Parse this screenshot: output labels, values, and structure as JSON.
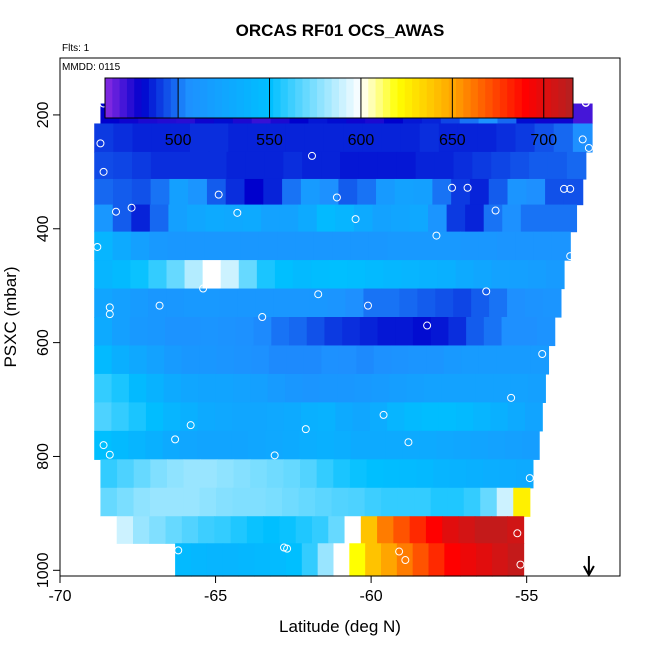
{
  "header": {
    "title": "ORCAS RF01 OCS_AWAS",
    "flts": "Flts: 1",
    "mmdd": "MMDD: 0115"
  },
  "chart_data": {
    "type": "heatmap",
    "title": "ORCAS RF01 OCS_AWAS",
    "xlabel": "Latitude (deg N)",
    "ylabel": "PSXC (mbar)",
    "xlim": [
      -70,
      -52
    ],
    "ylim": [
      1010,
      100
    ],
    "y_reversed": true,
    "grid": false,
    "x_ticks": [
      -70,
      -65,
      -60,
      -55
    ],
    "y_ticks": [
      200,
      400,
      600,
      800,
      1000
    ],
    "colorbar": {
      "range": [
        460,
        716
      ],
      "ticks": [
        500,
        550,
        600,
        650,
        700
      ],
      "colors": [
        "#8a2be2",
        "#0000cd",
        "#1e90ff",
        "#00bfff",
        "#ffffff",
        "#ffff00",
        "#ffa500",
        "#ff0000",
        "#b22222"
      ],
      "stops": [
        460,
        480,
        505,
        550,
        600,
        620,
        650,
        690,
        716
      ]
    },
    "layers": [
      {
        "p": 190,
        "lat_start": -68.7,
        "lat_end": -52.9,
        "values": [
          480,
          478,
          476,
          475,
          474,
          478,
          482,
          476,
          472,
          476,
          480,
          484,
          482,
          478,
          476,
          480,
          484,
          486,
          492,
          500,
          508,
          498,
          482,
          478,
          478,
          470
        ]
      },
      {
        "p": 240,
        "lat_start": -68.9,
        "lat_end": -52.9,
        "values": [
          490,
          488,
          486,
          486,
          486,
          488,
          488,
          486,
          486,
          486,
          486,
          486,
          486,
          486,
          486,
          486,
          486,
          488,
          486,
          486,
          486,
          488,
          490,
          494,
          498,
          505
        ]
      },
      {
        "p": 290,
        "lat_start": -68.9,
        "lat_end": -53.1,
        "values": [
          493,
          492,
          490,
          488,
          488,
          488,
          488,
          486,
          486,
          486,
          488,
          486,
          486,
          484,
          484,
          484,
          484,
          486,
          486,
          488,
          490,
          492,
          494,
          496,
          496,
          498
        ]
      },
      {
        "p": 335,
        "lat_start": -68.9,
        "lat_end": -53.2,
        "values": [
          498,
          496,
          494,
          500,
          520,
          510,
          496,
          488,
          480,
          486,
          500,
          516,
          506,
          496,
          500,
          515,
          522,
          520,
          500,
          490,
          486,
          496,
          510,
          505,
          494,
          494
        ]
      },
      {
        "p": 380,
        "lat_start": -68.9,
        "lat_end": -53.4,
        "values": [
          512,
          496,
          486,
          498,
          520,
          526,
          530,
          528,
          530,
          522,
          522,
          530,
          545,
          540,
          530,
          522,
          525,
          528,
          510,
          490,
          486,
          500,
          506,
          500,
          500,
          500
        ]
      },
      {
        "p": 430,
        "lat_start": -68.9,
        "lat_end": -53.6,
        "values": [
          540,
          530,
          520,
          514,
          512,
          512,
          512,
          512,
          512,
          512,
          512,
          512,
          512,
          512,
          512,
          512,
          514,
          514,
          514,
          514,
          512,
          512,
          510,
          510,
          510,
          510
        ]
      },
      {
        "p": 480,
        "lat_start": -68.9,
        "lat_end": -53.8,
        "values": [
          540,
          545,
          552,
          560,
          570,
          585,
          600,
          590,
          570,
          555,
          550,
          545,
          548,
          550,
          548,
          545,
          542,
          540,
          538,
          536,
          530,
          526,
          522,
          520,
          518,
          516
        ]
      },
      {
        "p": 530,
        "lat_start": -68.9,
        "lat_end": -53.9,
        "values": [
          525,
          520,
          516,
          512,
          512,
          514,
          514,
          512,
          512,
          512,
          512,
          512,
          512,
          510,
          505,
          500,
          500,
          498,
          496,
          494,
          492,
          496,
          500,
          505,
          508,
          510
        ]
      },
      {
        "p": 580,
        "lat_start": -68.9,
        "lat_end": -54.1,
        "values": [
          530,
          520,
          514,
          512,
          508,
          508,
          510,
          508,
          506,
          504,
          500,
          498,
          494,
          490,
          488,
          486,
          484,
          484,
          482,
          484,
          488,
          496,
          500,
          505,
          505,
          508
        ]
      },
      {
        "p": 630,
        "lat_start": -68.9,
        "lat_end": -54.3,
        "values": [
          545,
          535,
          528,
          522,
          516,
          512,
          512,
          510,
          508,
          506,
          504,
          504,
          504,
          506,
          505,
          504,
          506,
          508,
          510,
          510,
          514,
          516,
          516,
          516,
          516,
          516
        ]
      },
      {
        "p": 680,
        "lat_start": -68.9,
        "lat_end": -54.4,
        "values": [
          560,
          555,
          545,
          538,
          530,
          526,
          524,
          524,
          522,
          520,
          516,
          512,
          510,
          512,
          512,
          514,
          516,
          518,
          520,
          522,
          522,
          522,
          522,
          522,
          522,
          520
        ]
      },
      {
        "p": 730,
        "lat_start": -68.9,
        "lat_end": -54.5,
        "values": [
          565,
          560,
          555,
          548,
          540,
          536,
          530,
          528,
          526,
          526,
          528,
          530,
          536,
          538,
          530,
          526,
          532,
          540,
          545,
          548,
          548,
          545,
          540,
          536,
          530,
          524
        ]
      },
      {
        "p": 780,
        "lat_start": -68.9,
        "lat_end": -54.6,
        "values": [
          550,
          545,
          540,
          536,
          530,
          526,
          524,
          524,
          524,
          526,
          528,
          530,
          534,
          536,
          534,
          530,
          530,
          530,
          530,
          530,
          528,
          526,
          524,
          522,
          520,
          518
        ]
      },
      {
        "p": 830,
        "lat_start": -68.7,
        "lat_end": -54.8,
        "values": [
          560,
          565,
          570,
          575,
          578,
          580,
          580,
          578,
          576,
          574,
          572,
          570,
          566,
          560,
          555,
          552,
          550,
          548,
          546,
          544,
          540,
          538,
          536,
          534,
          532,
          530
        ]
      },
      {
        "p": 880,
        "lat_start": -68.7,
        "lat_end": -54.9,
        "values": [
          570,
          574,
          578,
          580,
          580,
          580,
          578,
          576,
          575,
          575,
          574,
          572,
          570,
          568,
          566,
          565,
          562,
          560,
          560,
          560,
          556,
          556,
          560,
          570,
          590,
          625
        ]
      },
      {
        "p": 930,
        "lat_start": -68.7,
        "lat_end": -55.1,
        "values": [
          600,
          590,
          580,
          575,
          570,
          566,
          562,
          560,
          556,
          552,
          550,
          552,
          556,
          560,
          570,
          600,
          640,
          660,
          670,
          680,
          690,
          700,
          705,
          710,
          710,
          706
        ]
      },
      {
        "p": 975,
        "lat_start": -66.3,
        "lat_end": -55.1,
        "values": [
          545,
          542,
          540,
          540,
          542,
          544,
          546,
          550,
          560,
          580,
          600,
          620,
          640,
          650,
          660,
          670,
          680,
          690,
          696,
          700,
          705,
          710
        ]
      }
    ],
    "sample_points": [
      [
        -68.6,
        180
      ],
      [
        -66.1,
        178
      ],
      [
        -60.4,
        178
      ],
      [
        -56.4,
        178
      ],
      [
        -53.1,
        178
      ],
      [
        -53.1,
        179
      ],
      [
        -68.7,
        250
      ],
      [
        -61.9,
        272
      ],
      [
        -53.2,
        243
      ],
      [
        -53.0,
        258
      ],
      [
        -68.6,
        300
      ],
      [
        -64.9,
        340
      ],
      [
        -61.1,
        345
      ],
      [
        -57.4,
        328
      ],
      [
        -56.9,
        328
      ],
      [
        -56.0,
        368
      ],
      [
        -53.8,
        330
      ],
      [
        -53.6,
        330
      ],
      [
        -68.2,
        370
      ],
      [
        -67.7,
        363
      ],
      [
        -64.3,
        372
      ],
      [
        -60.5,
        383
      ],
      [
        -57.9,
        412
      ],
      [
        -53.6,
        448
      ],
      [
        -68.8,
        432
      ],
      [
        -65.4,
        505
      ],
      [
        -61.7,
        515
      ],
      [
        -56.3,
        510
      ],
      [
        -60.1,
        535
      ],
      [
        -66.8,
        535
      ],
      [
        -68.4,
        538
      ],
      [
        -68.4,
        550
      ],
      [
        -63.5,
        555
      ],
      [
        -58.2,
        570
      ],
      [
        -54.5,
        620
      ],
      [
        -59.6,
        727
      ],
      [
        -55.5,
        697
      ],
      [
        -65.8,
        745
      ],
      [
        -62.1,
        752
      ],
      [
        -68.6,
        780
      ],
      [
        -66.3,
        770
      ],
      [
        -58.8,
        775
      ],
      [
        -68.4,
        797
      ],
      [
        -63.1,
        798
      ],
      [
        -54.9,
        838
      ],
      [
        -68.6,
        935
      ],
      [
        -66.2,
        965
      ],
      [
        -62.8,
        960
      ],
      [
        -62.7,
        962
      ],
      [
        -59.1,
        967
      ],
      [
        -58.9,
        982
      ],
      [
        -55.3,
        935
      ],
      [
        -55.2,
        990
      ]
    ],
    "marker": {
      "lat": -53.0,
      "p": 1000,
      "symbol": "down-arrow"
    }
  }
}
